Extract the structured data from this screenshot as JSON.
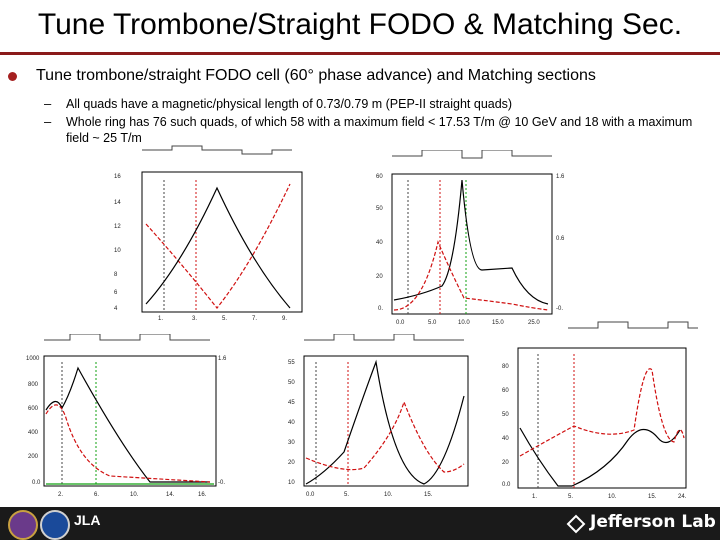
{
  "slide": {
    "title": "Tune Trombone/Straight FODO & Matching Sec.",
    "bullet1": "Tune trombone/straight FODO cell (60° phase advance) and Matching sections",
    "bullet2": "All quads have a magnetic/physical length of 0.73/0.79 m (PEP-II straight quads)",
    "bullet3": "Whole ring has 76 such quads, of which 58 with a maximum field < 17.53 T/m @ 10 GeV and 18 with a maximum field ~ 25 T/m",
    "dash": "–"
  },
  "footer": {
    "brand": "Jefferson Lab",
    "seal_text": "JLA"
  },
  "colors": {
    "accent": "#8a1a1a",
    "beta_x": "#000000",
    "beta_y": "#d01010",
    "dispersion": "#10a010",
    "footer_bg": "#1a1a1a"
  }
}
